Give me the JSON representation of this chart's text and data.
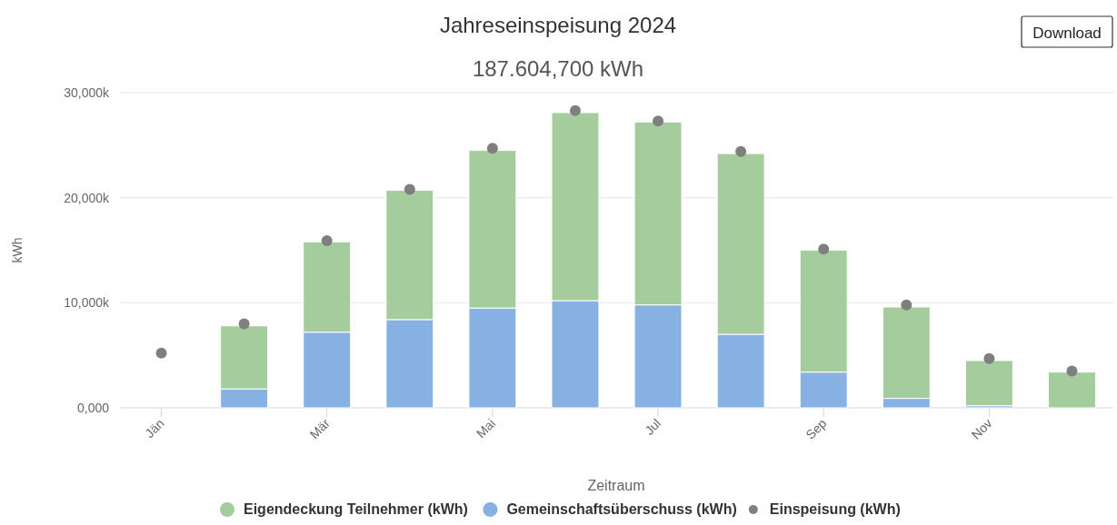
{
  "chart_data": {
    "type": "bar",
    "title": "Jahreseinspeisung 2024",
    "subtitle": "187.604,700 kWh",
    "xlabel": "Zeitraum",
    "ylabel": "kWh",
    "annotations": [
      "Download"
    ],
    "categories": [
      "Jän",
      null,
      "Mär",
      null,
      "Mai",
      null,
      "Jul",
      null,
      "Sep",
      null,
      "Nov",
      null
    ],
    "stacked": true,
    "series": [
      {
        "name": "Gemeinschaftsüberschuss (kWh)",
        "color": "#88b1e3",
        "values": [
          null,
          1.8,
          7.2,
          8.4,
          9.5,
          10.2,
          9.8,
          7.0,
          3.4,
          0.9,
          0.2,
          null
        ]
      },
      {
        "name": "Eigendeckung Teilnehmer (kWh)",
        "color": "#a4cc9c",
        "values": [
          null,
          6.0,
          8.6,
          12.3,
          15.0,
          17.9,
          17.4,
          17.2,
          11.6,
          8.7,
          4.3,
          3.4
        ]
      },
      {
        "name": "Einspeisung (kWh)",
        "type": "scatter",
        "color": "#7f7f7f",
        "marker": "circle",
        "values": [
          5.2,
          8.0,
          15.9,
          20.8,
          24.7,
          28.3,
          27.3,
          24.4,
          15.1,
          9.8,
          4.7,
          3.5
        ]
      }
    ],
    "ylim": [
      0,
      30
    ],
    "yticks": [
      {
        "value": 0,
        "label": "0,000"
      },
      {
        "value": 10,
        "label": "10,000k"
      },
      {
        "value": 20,
        "label": "20,000k"
      },
      {
        "value": 30,
        "label": "30,000k"
      }
    ],
    "grid": "y",
    "legend": "bottom"
  }
}
